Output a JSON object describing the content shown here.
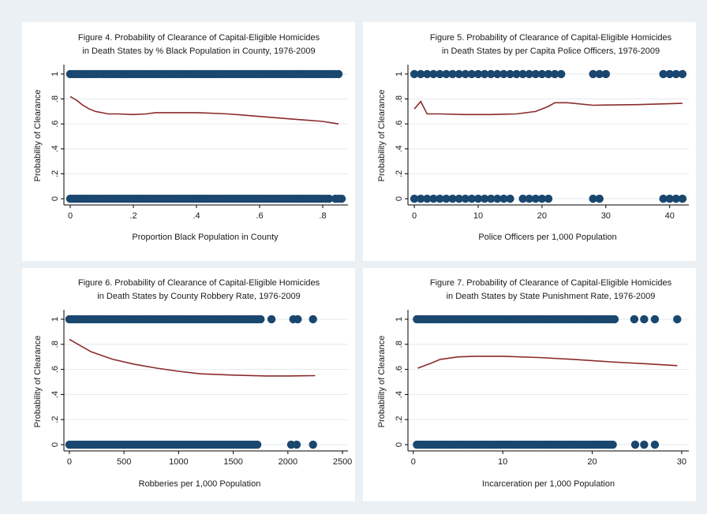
{
  "figure": {
    "background": "#eaf0f3",
    "panel_background": "#ffffff",
    "dot_color": "#1a476f",
    "line_color": "#8b2a2a"
  },
  "chart_data": [
    {
      "type": "scatter",
      "title": "Figure 4. Probability of Clearance of Capital-Eligible Homicides",
      "subtitle": "in Death States by % Black Population in County, 1976-2009",
      "xlabel": "Proportion Black Population in County",
      "ylabel": "Probability of Clearance",
      "xlim": [
        -0.02,
        0.88
      ],
      "ylim": [
        -0.05,
        1.05
      ],
      "xticks": [
        0,
        0.2,
        0.4,
        0.6,
        0.8
      ],
      "xtick_labels": [
        "0",
        ".2",
        ".4",
        ".6",
        ".8"
      ],
      "yticks": [
        0,
        0.2,
        0.4,
        0.6,
        0.8,
        1
      ],
      "ytick_labels": [
        "0",
        ".2",
        ".4",
        ".6",
        ".8",
        "1"
      ],
      "grid": true,
      "points": {
        "y1_dense_range": [
          0,
          0.8
        ],
        "y1_extra": [
          0.81,
          0.82,
          0.83,
          0.84,
          0.85
        ],
        "y0_dense_range": [
          0,
          0.79
        ],
        "y0_extra": [
          0.8,
          0.81,
          0.82,
          0.84,
          0.85,
          0.86
        ]
      },
      "series": [
        {
          "name": "",
          "x": [
            0,
            0.02,
            0.04,
            0.06,
            0.08,
            0.1,
            0.12,
            0.15,
            0.2,
            0.24,
            0.27,
            0.3,
            0.4,
            0.5,
            0.55,
            0.6,
            0.7,
            0.8,
            0.85
          ],
          "y": [
            0.82,
            0.79,
            0.75,
            0.72,
            0.7,
            0.69,
            0.68,
            0.68,
            0.675,
            0.68,
            0.69,
            0.69,
            0.69,
            0.68,
            0.67,
            0.66,
            0.64,
            0.62,
            0.6
          ]
        }
      ]
    },
    {
      "type": "scatter",
      "title": "Figure 5. Probability of Clearance of Capital-Eligible Homicides",
      "subtitle": "in Death States by per Capita Police Officers, 1976-2009",
      "xlabel": "Police Officers per 1,000 Population",
      "ylabel": "Probability of Clearance",
      "xlim": [
        -1,
        43
      ],
      "ylim": [
        -0.05,
        1.05
      ],
      "xticks": [
        0,
        10,
        20,
        30,
        40
      ],
      "xtick_labels": [
        "0",
        "10",
        "20",
        "30",
        "40"
      ],
      "yticks": [
        0,
        0.2,
        0.4,
        0.6,
        0.8,
        1
      ],
      "ytick_labels": [
        "0",
        ".2",
        ".4",
        ".6",
        ".8",
        "1"
      ],
      "grid": true,
      "points": {
        "y1": [
          0,
          1,
          2,
          3,
          4,
          5,
          6,
          7,
          8,
          9,
          10,
          11,
          12,
          13,
          14,
          15,
          16,
          17,
          18,
          19,
          20,
          21,
          22,
          23,
          28,
          29,
          30,
          39,
          40,
          41,
          42
        ],
        "y0": [
          0,
          1,
          2,
          3,
          4,
          5,
          6,
          7,
          8,
          9,
          10,
          11,
          12,
          13,
          14,
          15,
          17,
          18,
          19,
          20,
          21,
          28,
          29,
          39,
          40,
          41,
          42
        ]
      },
      "series": [
        {
          "name": "",
          "x": [
            0,
            1,
            2,
            4,
            8,
            12,
            16,
            19,
            21,
            22,
            24,
            28,
            35,
            42
          ],
          "y": [
            0.72,
            0.78,
            0.68,
            0.68,
            0.675,
            0.675,
            0.68,
            0.7,
            0.74,
            0.77,
            0.77,
            0.75,
            0.755,
            0.765
          ]
        }
      ]
    },
    {
      "type": "scatter",
      "title": "Figure 6. Probability of Clearance of Capital-Eligible Homicides",
      "subtitle": "in Death States by County Robbery Rate, 1976-2009",
      "xlabel": "Robberies per 1,000 Population",
      "ylabel": "Probability of Clearance",
      "xlim": [
        -50,
        2550
      ],
      "ylim": [
        -0.05,
        1.05
      ],
      "xticks": [
        0,
        500,
        1000,
        1500,
        2000,
        2500
      ],
      "xtick_labels": [
        "0",
        "500",
        "1000",
        "1500",
        "2000",
        "2500"
      ],
      "yticks": [
        0,
        0.2,
        0.4,
        0.6,
        0.8,
        1
      ],
      "ytick_labels": [
        "0",
        ".2",
        ".4",
        ".6",
        ".8",
        "1"
      ],
      "grid": true,
      "points": {
        "y1_dense_range": [
          0,
          1750
        ],
        "y1_extra": [
          1850,
          2050,
          2090,
          2230
        ],
        "y0_dense_range": [
          0,
          1720
        ],
        "y0_extra": [
          2030,
          2080,
          2230
        ]
      },
      "series": [
        {
          "name": "",
          "x": [
            0,
            100,
            200,
            300,
            400,
            600,
            800,
            1000,
            1200,
            1500,
            1800,
            2000,
            2250
          ],
          "y": [
            0.84,
            0.79,
            0.74,
            0.71,
            0.68,
            0.64,
            0.61,
            0.585,
            0.565,
            0.555,
            0.548,
            0.548,
            0.55
          ]
        }
      ]
    },
    {
      "type": "scatter",
      "title": "Figure 7. Probability of Clearance of Capital-Eligible Homicides",
      "subtitle": "in Death States by State Punishment Rate, 1976-2009",
      "xlabel": "Incarceration per 1,000 Population",
      "ylabel": "Probability of Clearance",
      "xlim": [
        -0.6,
        30.8
      ],
      "ylim": [
        -0.05,
        1.05
      ],
      "xticks": [
        0,
        10,
        20,
        30
      ],
      "xtick_labels": [
        "0",
        "10",
        "20",
        "30"
      ],
      "yticks": [
        0,
        0.2,
        0.4,
        0.6,
        0.8,
        1
      ],
      "ytick_labels": [
        "0",
        ".2",
        ".4",
        ".6",
        ".8",
        "1"
      ],
      "grid": true,
      "points": {
        "y1_dense_range": [
          0.4,
          22.5
        ],
        "y1_extra": [
          24.7,
          25.8,
          27.0,
          29.5
        ],
        "y0_dense_range": [
          0.4,
          22.3
        ],
        "y0_extra": [
          24.8,
          25.8,
          27.0
        ]
      },
      "series": [
        {
          "name": "",
          "x": [
            0.5,
            2,
            3,
            5,
            7,
            10,
            14,
            18,
            22,
            26,
            29.5
          ],
          "y": [
            0.61,
            0.65,
            0.68,
            0.7,
            0.705,
            0.705,
            0.695,
            0.68,
            0.66,
            0.645,
            0.63
          ]
        }
      ]
    }
  ]
}
